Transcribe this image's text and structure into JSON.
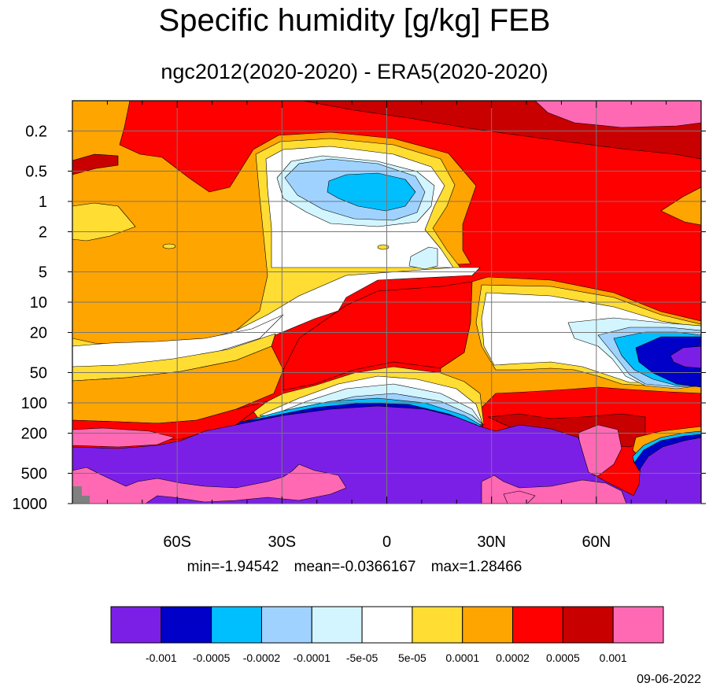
{
  "chart_data": {
    "type": "contour",
    "title": "Specific humidity [g/kg] FEB",
    "subtitle": "ngc2012(2020-2020) - ERA5(2020-2020)",
    "x_ticks": [
      "60S",
      "30S",
      "0",
      "30N",
      "60N"
    ],
    "x_tick_values": [
      -60,
      -30,
      0,
      30,
      60
    ],
    "x_range": [
      -90,
      90
    ],
    "y_ticks": [
      "0.2",
      "0.5",
      "1",
      "2",
      "5",
      "10",
      "20",
      "50",
      "100",
      "200",
      "500",
      "1000"
    ],
    "y_tick_values": [
      0.2,
      0.5,
      1,
      2,
      5,
      10,
      20,
      50,
      100,
      200,
      500,
      1000
    ],
    "y_range": [
      0.1,
      1000
    ],
    "y_scale": "log, inverted",
    "grid": true,
    "levels": [
      "-0.001",
      "-0.0005",
      "-0.0002",
      "-0.0001",
      "-5e-05",
      "5e-05",
      "0.0001",
      "0.0002",
      "0.0005",
      "0.001"
    ],
    "colors": [
      "#7b1fe6",
      "#0000c8",
      "#00bfff",
      "#a0d2ff",
      "#d2f5ff",
      "#ffffff",
      "#ffdd33",
      "#ffa500",
      "#ff0000",
      "#c80000",
      "#ff69b4"
    ],
    "missing_color": "#808080",
    "stats": {
      "min": "min=-1.94542",
      "mean": "mean=-0.0366167",
      "max": "max=1.28466"
    }
  },
  "date": "09-06-2022"
}
